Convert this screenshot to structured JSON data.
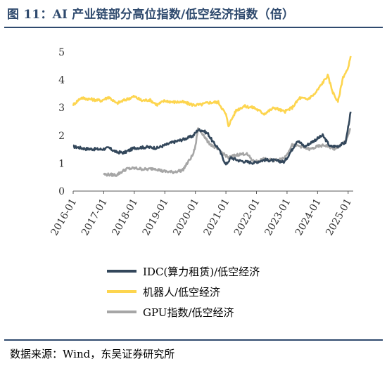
{
  "header": {
    "title": "图 11：AI 产业链部分高位指数/低空经济指数（倍）"
  },
  "footer": {
    "source": "数据来源：Wind，东吴证券研究所"
  },
  "colors": {
    "idc": "#33475b",
    "robot": "#fdd54f",
    "gpu": "#a6a6a6",
    "rule": "#2f4a6e"
  },
  "chart_data": {
    "type": "line",
    "title": "",
    "xlabel": "",
    "ylabel": "",
    "ylim": [
      0,
      5
    ],
    "yticks": [
      "0",
      "1",
      "2",
      "3",
      "4",
      "5"
    ],
    "xticks": [
      "2016-01",
      "2017-01",
      "2018-01",
      "2019-01",
      "2020-01",
      "2021-01",
      "2022-01",
      "2023-01",
      "2024-01",
      "2025-01"
    ],
    "xlim": [
      "2016-01",
      "2025-03"
    ],
    "grid": false,
    "legend_position": "bottom",
    "series": [
      {
        "name": "IDC(算力租赁)/低空经济",
        "color_key": "idc",
        "points": [
          [
            "2016-01",
            1.6
          ],
          [
            "2016-06",
            1.52
          ],
          [
            "2016-12",
            1.5
          ],
          [
            "2017-03",
            1.55
          ],
          [
            "2017-06",
            1.4
          ],
          [
            "2017-09",
            1.38
          ],
          [
            "2018-01",
            1.55
          ],
          [
            "2018-06",
            1.58
          ],
          [
            "2018-10",
            1.55
          ],
          [
            "2019-01",
            1.65
          ],
          [
            "2019-04",
            1.75
          ],
          [
            "2019-08",
            1.85
          ],
          [
            "2019-12",
            1.98
          ],
          [
            "2020-02",
            2.2
          ],
          [
            "2020-04",
            2.18
          ],
          [
            "2020-06",
            2.05
          ],
          [
            "2020-08",
            1.75
          ],
          [
            "2020-10",
            1.55
          ],
          [
            "2021-01",
            0.95
          ],
          [
            "2021-03",
            1.2
          ],
          [
            "2021-06",
            1.1
          ],
          [
            "2021-09",
            1.05
          ],
          [
            "2021-12",
            1.02
          ],
          [
            "2022-04",
            1.12
          ],
          [
            "2022-08",
            1.1
          ],
          [
            "2022-12",
            1.05
          ],
          [
            "2023-03",
            1.5
          ],
          [
            "2023-05",
            1.82
          ],
          [
            "2023-08",
            1.6
          ],
          [
            "2023-11",
            1.78
          ],
          [
            "2024-03",
            2.0
          ],
          [
            "2024-06",
            1.6
          ],
          [
            "2024-09",
            1.62
          ],
          [
            "2024-12",
            1.75
          ],
          [
            "2025-02",
            2.85
          ]
        ]
      },
      {
        "name": "机器人/低空经济",
        "color_key": "robot",
        "points": [
          [
            "2016-01",
            3.1
          ],
          [
            "2016-04",
            3.35
          ],
          [
            "2016-08",
            3.3
          ],
          [
            "2016-12",
            3.25
          ],
          [
            "2017-03",
            3.38
          ],
          [
            "2017-06",
            3.15
          ],
          [
            "2017-10",
            3.3
          ],
          [
            "2018-01",
            3.4
          ],
          [
            "2018-04",
            3.25
          ],
          [
            "2018-07",
            3.28
          ],
          [
            "2018-10",
            3.1
          ],
          [
            "2019-01",
            3.25
          ],
          [
            "2019-04",
            3.2
          ],
          [
            "2019-08",
            3.2
          ],
          [
            "2019-12",
            3.1
          ],
          [
            "2020-03",
            3.1
          ],
          [
            "2020-06",
            3.18
          ],
          [
            "2020-10",
            3.2
          ],
          [
            "2021-01",
            2.75
          ],
          [
            "2021-02",
            2.35
          ],
          [
            "2021-05",
            2.9
          ],
          [
            "2021-08",
            3.05
          ],
          [
            "2021-12",
            3.0
          ],
          [
            "2022-04",
            2.78
          ],
          [
            "2022-08",
            3.0
          ],
          [
            "2022-12",
            2.85
          ],
          [
            "2023-03",
            3.0
          ],
          [
            "2023-06",
            3.35
          ],
          [
            "2023-09",
            3.3
          ],
          [
            "2023-12",
            3.5
          ],
          [
            "2024-03",
            3.9
          ],
          [
            "2024-05",
            4.15
          ],
          [
            "2024-07",
            3.55
          ],
          [
            "2024-09",
            3.2
          ],
          [
            "2024-11",
            4.1
          ],
          [
            "2025-01",
            4.4
          ],
          [
            "2025-02",
            4.85
          ]
        ]
      },
      {
        "name": "GPU指数/低空经济",
        "color_key": "gpu",
        "points": [
          [
            "2017-01",
            0.6
          ],
          [
            "2017-06",
            0.58
          ],
          [
            "2017-10",
            0.8
          ],
          [
            "2018-01",
            0.82
          ],
          [
            "2018-06",
            0.78
          ],
          [
            "2018-09",
            0.82
          ],
          [
            "2018-12",
            0.72
          ],
          [
            "2019-04",
            0.68
          ],
          [
            "2019-08",
            0.75
          ],
          [
            "2019-12",
            1.3
          ],
          [
            "2020-01",
            1.6
          ],
          [
            "2020-02",
            2.25
          ],
          [
            "2020-04",
            2.05
          ],
          [
            "2020-06",
            1.75
          ],
          [
            "2020-09",
            1.55
          ],
          [
            "2020-12",
            1.35
          ],
          [
            "2021-02",
            1.2
          ],
          [
            "2021-05",
            1.3
          ],
          [
            "2021-09",
            1.35
          ],
          [
            "2021-12",
            1.05
          ],
          [
            "2022-04",
            1.15
          ],
          [
            "2022-08",
            1.1
          ],
          [
            "2022-12",
            1.2
          ],
          [
            "2023-03",
            1.65
          ],
          [
            "2023-06",
            1.62
          ],
          [
            "2023-10",
            1.5
          ],
          [
            "2024-01",
            1.6
          ],
          [
            "2024-04",
            1.65
          ],
          [
            "2024-08",
            1.5
          ],
          [
            "2024-12",
            1.8
          ],
          [
            "2025-02",
            2.25
          ]
        ]
      }
    ]
  }
}
